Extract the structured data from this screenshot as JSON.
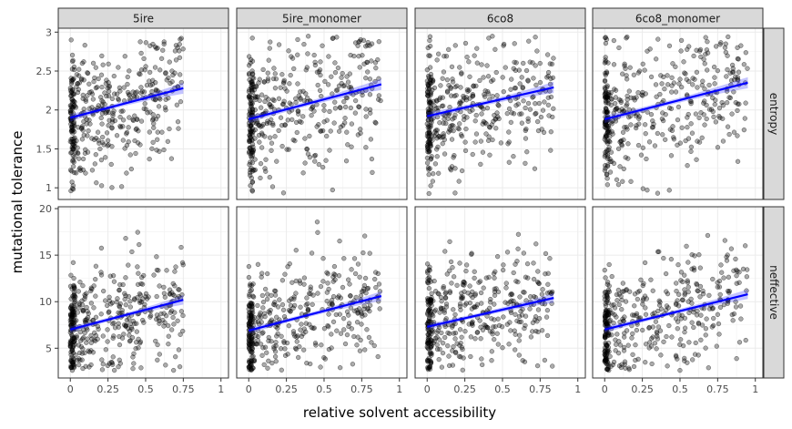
{
  "chart_data": {
    "type": "scatter",
    "xlabel": "relative solvent accessibility",
    "ylabel": "mutational tolerance",
    "col_facets": [
      "5ire",
      "5ire_monomer",
      "6co8",
      "6co8_monomer"
    ],
    "row_facets": [
      "entropy",
      "neffective"
    ],
    "x_ticks": [
      "0",
      "0.25",
      "0.5",
      "0.75",
      "1"
    ],
    "xlim": [
      -0.08,
      1.05
    ],
    "rows": [
      {
        "name": "entropy",
        "ylim": [
          0.85,
          3.05
        ],
        "y_ticks": [
          {
            "v": 1,
            "label": "1"
          },
          {
            "v": 1.5,
            "label": "1.5"
          },
          {
            "v": 2,
            "label": "2"
          },
          {
            "v": 2.5,
            "label": "2.5"
          },
          {
            "v": 3,
            "label": "3"
          }
        ],
        "fits": [
          {
            "x0": 0,
            "x1": 0.75,
            "y0": 1.9,
            "y1": 2.28
          },
          {
            "x0": 0,
            "x1": 0.88,
            "y0": 1.88,
            "y1": 2.33
          },
          {
            "x0": 0,
            "x1": 0.84,
            "y0": 1.92,
            "y1": 2.29
          },
          {
            "x0": 0,
            "x1": 0.95,
            "y0": 1.88,
            "y1": 2.35
          }
        ],
        "scatter_center": 2.05,
        "scatter_spread": 0.42,
        "scatter_min": 0.92,
        "scatter_max": 2.95
      },
      {
        "name": "neffective",
        "ylim": [
          1.8,
          20.2
        ],
        "y_ticks": [
          {
            "v": 5,
            "label": "5"
          },
          {
            "v": 10,
            "label": "10"
          },
          {
            "v": 15,
            "label": "15"
          },
          {
            "v": 20,
            "label": "20"
          }
        ],
        "fits": [
          {
            "x0": 0,
            "x1": 0.75,
            "y0": 7.0,
            "y1": 10.2
          },
          {
            "x0": 0,
            "x1": 0.88,
            "y0": 6.9,
            "y1": 10.6
          },
          {
            "x0": 0,
            "x1": 0.84,
            "y0": 7.3,
            "y1": 10.4
          },
          {
            "x0": 0,
            "x1": 0.95,
            "y0": 7.0,
            "y1": 10.8
          }
        ],
        "scatter_center": 8.0,
        "scatter_spread": 3.0,
        "scatter_min": 2.6,
        "scatter_max": 19.2
      }
    ],
    "x_max_per_col": [
      0.75,
      0.88,
      0.84,
      0.95
    ],
    "points_per_panel": 420,
    "point_color": "#000000",
    "fit_color": "#0000ff",
    "ribbon_color": "#0000ff",
    "grid": true
  }
}
